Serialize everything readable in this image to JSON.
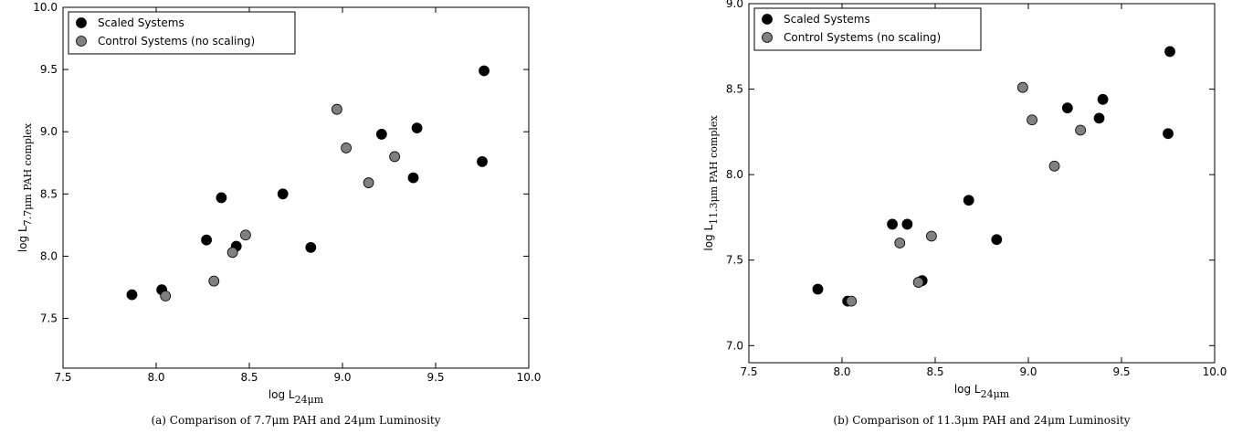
{
  "chart_data": [
    {
      "type": "scatter",
      "xlabel": {
        "main": "log L",
        "sub": "24μm"
      },
      "ylabel": {
        "main": "log L",
        "sub": "7.7μm PAH complex"
      },
      "caption": "(a) Comparison of 7.7μm PAH and 24μm Luminosity",
      "xlim": [
        7.5,
        10.0
      ],
      "ylim": [
        7.1,
        10.0
      ],
      "xticks": [
        {
          "value": 7.5,
          "label": "7.5"
        },
        {
          "value": 8.0,
          "label": "8.0"
        },
        {
          "value": 8.5,
          "label": "8.5"
        },
        {
          "value": 9.0,
          "label": "9.0"
        },
        {
          "value": 9.5,
          "label": "9.5"
        },
        {
          "value": 10.0,
          "label": "10.0"
        }
      ],
      "yticks": [
        {
          "value": 7.5,
          "label": "7.5"
        },
        {
          "value": 8.0,
          "label": "8.0"
        },
        {
          "value": 8.5,
          "label": "8.5"
        },
        {
          "value": 9.0,
          "label": "9.0"
        },
        {
          "value": 9.5,
          "label": "9.5"
        },
        {
          "value": 10.0,
          "label": "10.0"
        }
      ],
      "legend": "upper left",
      "series": [
        {
          "name": "Scaled Systems",
          "color": "#000000",
          "x": [
            7.87,
            8.03,
            8.27,
            8.35,
            8.43,
            8.68,
            8.83,
            9.21,
            9.38,
            9.4,
            9.75,
            9.76
          ],
          "values": [
            7.69,
            7.73,
            8.13,
            8.47,
            8.08,
            8.5,
            8.07,
            8.98,
            8.63,
            9.03,
            8.76,
            9.49
          ]
        },
        {
          "name": "Control Systems (no scaling)",
          "color": "#808080",
          "x": [
            8.05,
            8.31,
            8.41,
            8.48,
            8.97,
            9.02,
            9.14,
            9.28
          ],
          "values": [
            7.68,
            7.8,
            8.03,
            8.17,
            9.18,
            8.87,
            8.59,
            8.8
          ]
        }
      ]
    },
    {
      "type": "scatter",
      "xlabel": {
        "main": "log L",
        "sub": "24μm"
      },
      "ylabel": {
        "main": "log L",
        "sub": "11.3μm PAH complex"
      },
      "caption": "(b) Comparison of 11.3μm PAH and 24μm Luminosity",
      "xlim": [
        7.5,
        10.0
      ],
      "ylim": [
        6.9,
        9.0
      ],
      "xticks": [
        {
          "value": 7.5,
          "label": "7.5"
        },
        {
          "value": 8.0,
          "label": "8.0"
        },
        {
          "value": 8.5,
          "label": "8.5"
        },
        {
          "value": 9.0,
          "label": "9.0"
        },
        {
          "value": 9.5,
          "label": "9.5"
        },
        {
          "value": 10.0,
          "label": "10.0"
        }
      ],
      "yticks": [
        {
          "value": 7.0,
          "label": "7.0"
        },
        {
          "value": 7.5,
          "label": "7.5"
        },
        {
          "value": 8.0,
          "label": "8.0"
        },
        {
          "value": 8.5,
          "label": "8.5"
        },
        {
          "value": 9.0,
          "label": "9.0"
        }
      ],
      "legend": "upper left",
      "series": [
        {
          "name": "Scaled Systems",
          "color": "#000000",
          "x": [
            7.87,
            8.03,
            8.27,
            8.35,
            8.43,
            8.68,
            8.83,
            9.21,
            9.38,
            9.4,
            9.75,
            9.76
          ],
          "values": [
            7.33,
            7.26,
            7.71,
            7.71,
            7.38,
            7.85,
            7.62,
            8.39,
            8.33,
            8.44,
            8.24,
            8.72
          ]
        },
        {
          "name": "Control Systems (no scaling)",
          "color": "#808080",
          "x": [
            8.05,
            8.31,
            8.41,
            8.48,
            8.97,
            9.02,
            9.14,
            9.28
          ],
          "values": [
            7.26,
            7.6,
            7.37,
            7.64,
            8.51,
            8.32,
            8.05,
            8.26
          ]
        }
      ]
    }
  ]
}
